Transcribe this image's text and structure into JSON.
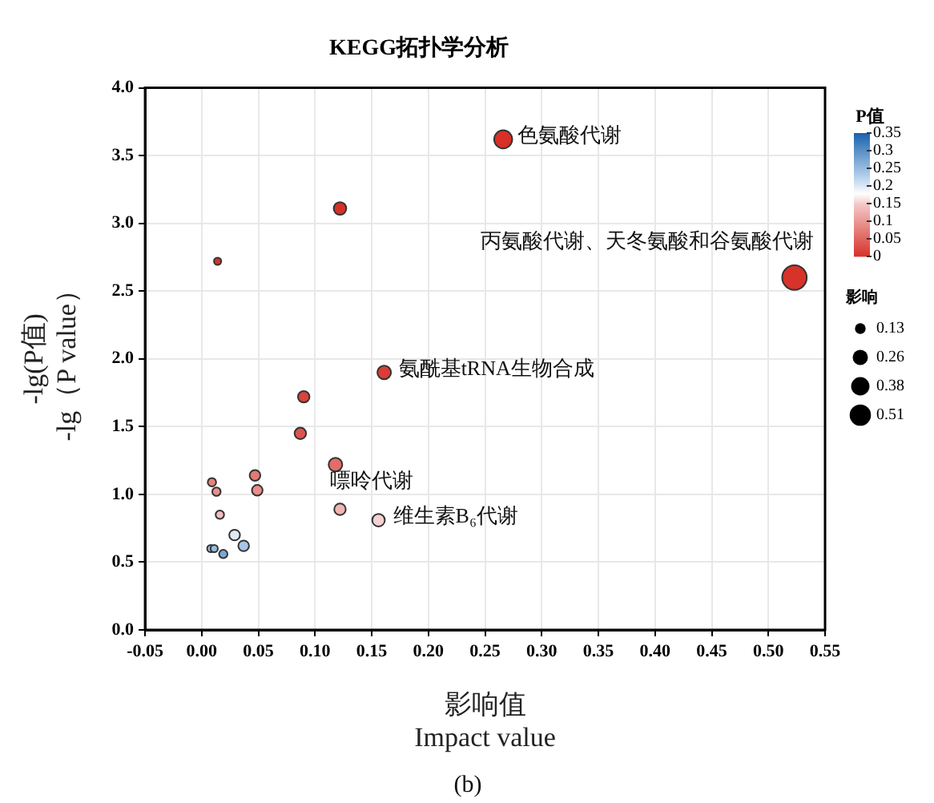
{
  "chart_data": {
    "type": "bubble",
    "title": "KEGG拓扑学分析",
    "xlabel": "影响值\nImpact value",
    "ylabel": "-lg(P值)\n-lg（P value）",
    "clabel": "P值",
    "legend_title": "影响",
    "x": [
      0.266,
      0.122,
      0.014,
      0.523,
      0.161,
      0.09,
      0.087,
      0.118,
      0.122,
      0.156,
      0.009,
      0.013,
      0.047,
      0.049,
      0.016,
      0.029,
      0.037,
      0.008,
      0.011,
      0.019
    ],
    "values": [
      3.62,
      3.11,
      2.72,
      2.6,
      1.9,
      1.72,
      1.45,
      1.22,
      0.89,
      0.81,
      1.09,
      1.02,
      1.14,
      1.03,
      0.85,
      0.7,
      0.62,
      0.6,
      0.6,
      0.56
    ],
    "sizes": [
      0.37,
      0.18,
      0.06,
      0.68,
      0.21,
      0.15,
      0.15,
      0.21,
      0.15,
      0.18,
      0.08,
      0.08,
      0.13,
      0.13,
      0.08,
      0.13,
      0.13,
      0.06,
      0.06,
      0.08
    ],
    "cvalues": [
      0.0002,
      0.0008,
      0.0019,
      0.0025,
      0.013,
      0.019,
      0.035,
      0.06,
      0.13,
      0.155,
      0.081,
      0.095,
      0.072,
      0.093,
      0.14,
      0.2,
      0.24,
      0.25,
      0.25,
      0.275
    ],
    "size_legend": [
      0.13,
      0.26,
      0.38,
      0.51
    ],
    "clim": [
      0,
      0.35
    ],
    "cticks": [
      0,
      0.05,
      0.1,
      0.15,
      0.2,
      0.25,
      0.3,
      0.35
    ],
    "xlim": [
      -0.05,
      0.55
    ],
    "xticks": [
      {
        "value": -0.05,
        "label": "-0.05"
      },
      {
        "value": 0,
        "label": "0.00"
      },
      {
        "value": 0.05,
        "label": "0.05"
      },
      {
        "value": 0.1,
        "label": "0.10"
      },
      {
        "value": 0.15,
        "label": "0.15"
      },
      {
        "value": 0.2,
        "label": "0.20"
      },
      {
        "value": 0.25,
        "label": "0.25"
      },
      {
        "value": 0.3,
        "label": "0.30"
      },
      {
        "value": 0.35,
        "label": "0.35"
      },
      {
        "value": 0.4,
        "label": "0.40"
      },
      {
        "value": 0.45,
        "label": "0.45"
      },
      {
        "value": 0.5,
        "label": "0.50"
      },
      {
        "value": 0.55,
        "label": "0.55"
      }
    ],
    "ylim": [
      0,
      4
    ],
    "yticks": [
      {
        "value": 0,
        "label": "0.0"
      },
      {
        "value": 0.5,
        "label": "0.5"
      },
      {
        "value": 1,
        "label": "1.0"
      },
      {
        "value": 1.5,
        "label": "1.5"
      },
      {
        "value": 2,
        "label": "2.0"
      },
      {
        "value": 2.5,
        "label": "2.5"
      },
      {
        "value": 3,
        "label": "3.0"
      },
      {
        "value": 3.5,
        "label": "3.5"
      },
      {
        "value": 4,
        "label": "4.0"
      }
    ],
    "grid": true,
    "annotations": [
      {
        "text": "色氨酸代谢",
        "x": 0.266,
        "y": 3.62
      },
      {
        "text": "丙氨酸代谢、天冬氨酸和谷氨酸代谢",
        "x": 0.523,
        "y": 2.6
      },
      {
        "text": "氨酰基tRNA生物合成",
        "x": 0.161,
        "y": 1.9
      },
      {
        "text": "维生素B₆代谢",
        "x": 0.156,
        "y": 0.81
      },
      {
        "text": "嘌呤代谢",
        "x": 0.122,
        "y": 0.89
      },
      "(b)"
    ]
  }
}
